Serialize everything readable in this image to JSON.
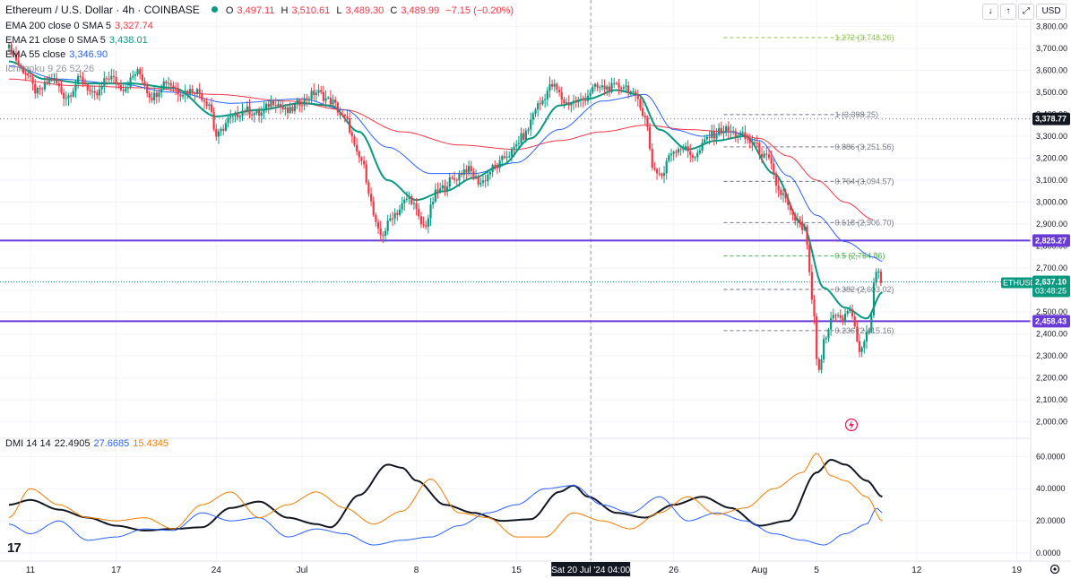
{
  "header": {
    "symbol": "Ethereum / U.S. Dollar · 4h · COINBASE",
    "o_label": "O",
    "o": "3,497.11",
    "h_label": "H",
    "h": "3,510.61",
    "l_label": "L",
    "l": "3,489.30",
    "c_label": "C",
    "c": "3,489.99",
    "change": "−7.15 (−0.20%)",
    "currency": "USD"
  },
  "indicators": {
    "ema200": {
      "label": "EMA 200 close 0 SMA 5",
      "value": "3,327.74",
      "color": "#f23645"
    },
    "ema21": {
      "label": "EMA 21 close 0 SMA 5",
      "value": "3,438.01",
      "color": "#089981"
    },
    "ema55": {
      "label": "EMA 55 close",
      "value": "3,346.90",
      "color": "#2962ff"
    },
    "ichimoku": {
      "label": "Ichimoku 9 26 52 26"
    }
  },
  "dmi": {
    "label": "DMI 14 14",
    "adx": "22.4905",
    "plus_di": "27.6685",
    "minus_di": "15.4345",
    "adx_color": "#131722",
    "plus_color": "#2962ff",
    "minus_color": "#f57c00"
  },
  "colors": {
    "up": "#089981",
    "down": "#f23645",
    "level_line": "#6a3bd6",
    "fib": "#787b86",
    "fib_top": "#8bc34a"
  },
  "chart_data": [
    {
      "type": "candlestick",
      "title": "Ethereum / U.S. Dollar · 4h · COINBASE",
      "yaxis": {
        "ticks": [
          2000,
          2100,
          2200,
          2300,
          2400,
          2500,
          2600,
          2700,
          2800,
          2900,
          3000,
          3100,
          3200,
          3300,
          3400,
          3500,
          3600,
          3700,
          3800
        ],
        "tick_labels": [
          "2,000.00",
          "2,100.00",
          "2,200.00",
          "2,300.00",
          "2,400.00",
          "2,500.00",
          "2,600.00",
          "2,700.00",
          "2,800.00",
          "2,900.00",
          "3,000.00",
          "3,100.00",
          "3,200.00",
          "3,300.00",
          "3,400.00",
          "3,500.00",
          "3,600.00",
          "3,700.00",
          "3,800.00"
        ],
        "range": [
          1950,
          3830
        ]
      },
      "xaxis": {
        "labels": [
          {
            "day": 11,
            "text": "11"
          },
          {
            "day": 17,
            "text": "17"
          },
          {
            "day": 24,
            "text": "24"
          },
          {
            "day": 30,
            "text": "Jul"
          },
          {
            "day": 38,
            "text": "8"
          },
          {
            "day": 45,
            "text": "15"
          },
          {
            "day": 56,
            "text": "26"
          },
          {
            "day": 62,
            "text": "Aug"
          },
          {
            "day": 66,
            "text": "5"
          },
          {
            "day": 73,
            "text": "12"
          },
          {
            "day": 80,
            "text": "19"
          }
        ],
        "crosshair_label": "Sat 20 Jul '24  04:00",
        "crosshair_day": 50.2
      },
      "levels": [
        {
          "value": 3378.77,
          "label": "3,378.77",
          "style": "dotted-gray"
        },
        {
          "value": 2825.27,
          "label": "2,825.27",
          "style": "solid-purple"
        },
        {
          "value": 2458.43,
          "label": "2,458.43",
          "style": "solid-purple"
        }
      ],
      "current_price": {
        "symbol": "ETHUSD",
        "value": 2637.1,
        "label": "2,637.10",
        "countdown": "03:48:25"
      },
      "fibonacci": [
        {
          "ratio": "1.272",
          "value": 3748.26,
          "label": "1.272 (3,748.26)"
        },
        {
          "ratio": "1",
          "value": 3398.25,
          "label": "1 (3,398.25)"
        },
        {
          "ratio": "0.886",
          "value": 3251.56,
          "label": "0.886 (3,251.56)"
        },
        {
          "ratio": "0.764",
          "value": 3094.57,
          "label": "0.764 (3,094.57)"
        },
        {
          "ratio": "0.618",
          "value": 2906.7,
          "label": "0.618 (2,906.70)"
        },
        {
          "ratio": "0.5",
          "value": 2754.86,
          "label": "0.5 (2,754.86)"
        },
        {
          "ratio": "0.382",
          "value": 2603.02,
          "label": "0.382 (2,603.02)"
        },
        {
          "ratio": "0.236",
          "value": 2415.16,
          "label": "0.236 (2,415.16)"
        }
      ],
      "fib_range_days": [
        59.5,
        69.5
      ],
      "price_anchors": [
        [
          9.5,
          3700
        ],
        [
          10.5,
          3600
        ],
        [
          11.5,
          3500
        ],
        [
          12.5,
          3560
        ],
        [
          13.5,
          3480
        ],
        [
          14.5,
          3560
        ],
        [
          15.5,
          3480
        ],
        [
          16.5,
          3570
        ],
        [
          17.5,
          3520
        ],
        [
          18.5,
          3590
        ],
        [
          19.5,
          3480
        ],
        [
          20.5,
          3550
        ],
        [
          21.5,
          3500
        ],
        [
          22.5,
          3510
        ],
        [
          23.5,
          3450
        ],
        [
          24,
          3300
        ],
        [
          25,
          3380
        ],
        [
          26,
          3420
        ],
        [
          27,
          3400
        ],
        [
          28,
          3460
        ],
        [
          29,
          3410
        ],
        [
          30,
          3460
        ],
        [
          31,
          3500
        ],
        [
          32,
          3460
        ],
        [
          33,
          3380
        ],
        [
          34,
          3200
        ],
        [
          35.5,
          2850
        ],
        [
          36.5,
          2950
        ],
        [
          37.5,
          3020
        ],
        [
          38.5,
          2890
        ],
        [
          39.5,
          3050
        ],
        [
          40.5,
          3100
        ],
        [
          41.5,
          3150
        ],
        [
          42.5,
          3090
        ],
        [
          43.5,
          3160
        ],
        [
          44.5,
          3220
        ],
        [
          45.5,
          3300
        ],
        [
          46.5,
          3440
        ],
        [
          47.5,
          3530
        ],
        [
          48.5,
          3450
        ],
        [
          49.5,
          3460
        ],
        [
          50.5,
          3520
        ],
        [
          51.5,
          3520
        ],
        [
          52.5,
          3530
        ],
        [
          53.5,
          3470
        ],
        [
          54,
          3380
        ],
        [
          54.6,
          3150
        ],
        [
          55.2,
          3120
        ],
        [
          55.8,
          3230
        ],
        [
          56.5,
          3250
        ],
        [
          57.5,
          3210
        ],
        [
          58.5,
          3300
        ],
        [
          59.5,
          3330
        ],
        [
          60.5,
          3310
        ],
        [
          61.5,
          3270
        ],
        [
          62.5,
          3200
        ],
        [
          63.5,
          3040
        ],
        [
          64.5,
          2920
        ],
        [
          65.2,
          2870
        ],
        [
          65.7,
          2550
        ],
        [
          66.1,
          2220
        ],
        [
          66.6,
          2380
        ],
        [
          67.2,
          2500
        ],
        [
          67.8,
          2460
        ],
        [
          68.3,
          2520
        ],
        [
          69,
          2330
        ],
        [
          69.6,
          2400
        ],
        [
          70.2,
          2700
        ],
        [
          70.6,
          2637
        ]
      ],
      "ema21_anchors": [
        [
          9.5,
          3640
        ],
        [
          12,
          3560
        ],
        [
          15,
          3540
        ],
        [
          18,
          3540
        ],
        [
          21,
          3520
        ],
        [
          24,
          3390
        ],
        [
          27,
          3420
        ],
        [
          30,
          3450
        ],
        [
          32,
          3440
        ],
        [
          34,
          3320
        ],
        [
          36,
          3100
        ],
        [
          38,
          3010
        ],
        [
          40,
          3050
        ],
        [
          42,
          3110
        ],
        [
          44,
          3170
        ],
        [
          46,
          3290
        ],
        [
          48,
          3440
        ],
        [
          50,
          3470
        ],
        [
          52,
          3510
        ],
        [
          53.5,
          3490
        ],
        [
          55,
          3330
        ],
        [
          57,
          3240
        ],
        [
          59,
          3280
        ],
        [
          61,
          3300
        ],
        [
          63,
          3130
        ],
        [
          65,
          2900
        ],
        [
          66.5,
          2610
        ],
        [
          68,
          2520
        ],
        [
          69.5,
          2470
        ],
        [
          70.6,
          2590
        ]
      ],
      "ema55_anchors": [
        [
          9.5,
          3620
        ],
        [
          13,
          3560
        ],
        [
          17,
          3540
        ],
        [
          21,
          3500
        ],
        [
          25,
          3450
        ],
        [
          30,
          3470
        ],
        [
          33,
          3420
        ],
        [
          36,
          3250
        ],
        [
          39,
          3130
        ],
        [
          42,
          3130
        ],
        [
          45,
          3180
        ],
        [
          48,
          3330
        ],
        [
          51,
          3460
        ],
        [
          54,
          3490
        ],
        [
          56,
          3330
        ],
        [
          58,
          3300
        ],
        [
          60,
          3320
        ],
        [
          62,
          3280
        ],
        [
          64,
          3120
        ],
        [
          66,
          2940
        ],
        [
          68,
          2820
        ],
        [
          70,
          2750
        ],
        [
          70.6,
          2730
        ]
      ],
      "ema200_anchors": [
        [
          9.5,
          3560
        ],
        [
          14,
          3530
        ],
        [
          19,
          3520
        ],
        [
          24,
          3490
        ],
        [
          29,
          3460
        ],
        [
          33,
          3420
        ],
        [
          37,
          3320
        ],
        [
          41,
          3260
        ],
        [
          45,
          3240
        ],
        [
          48,
          3280
        ],
        [
          51,
          3320
        ],
        [
          54,
          3350
        ],
        [
          57,
          3330
        ],
        [
          60,
          3320
        ],
        [
          62,
          3290
        ],
        [
          64,
          3210
        ],
        [
          66,
          3100
        ],
        [
          68,
          3000
        ],
        [
          70,
          2920
        ]
      ]
    },
    {
      "type": "line",
      "title": "DMI 14 14",
      "yaxis": {
        "ticks": [
          0,
          20,
          40,
          60
        ],
        "tick_labels": [
          "0.0000",
          "20.0000",
          "40.0000",
          "60.0000"
        ],
        "range": [
          -5,
          68
        ]
      },
      "series": [
        {
          "name": "ADX",
          "color": "#131722",
          "anchors": [
            [
              9.5,
              30
            ],
            [
              11,
              33
            ],
            [
              13,
              27
            ],
            [
              15,
              22
            ],
            [
              17,
              17
            ],
            [
              19,
              14
            ],
            [
              21,
              15
            ],
            [
              23,
              16
            ],
            [
              25,
              28
            ],
            [
              27,
              32
            ],
            [
              29,
              22
            ],
            [
              31,
              18
            ],
            [
              32,
              16
            ],
            [
              34,
              36
            ],
            [
              36,
              55
            ],
            [
              37,
              53
            ],
            [
              38,
              45
            ],
            [
              40,
              30
            ],
            [
              42,
              25
            ],
            [
              44,
              20
            ],
            [
              46,
              21
            ],
            [
              48,
              38
            ],
            [
              49,
              42
            ],
            [
              50,
              35
            ],
            [
              52,
              25
            ],
            [
              54,
              22
            ],
            [
              56,
              30
            ],
            [
              58,
              35
            ],
            [
              60,
              28
            ],
            [
              62,
              17
            ],
            [
              64,
              20
            ],
            [
              66,
              50
            ],
            [
              67,
              58
            ],
            [
              68,
              55
            ],
            [
              69.5,
              45
            ],
            [
              70.6,
              35
            ]
          ]
        },
        {
          "name": "+DI",
          "color": "#2962ff",
          "anchors": [
            [
              9.5,
              18
            ],
            [
              11,
              12
            ],
            [
              13,
              20
            ],
            [
              15,
              8
            ],
            [
              17,
              10
            ],
            [
              19,
              15
            ],
            [
              21,
              14
            ],
            [
              23,
              25
            ],
            [
              25,
              20
            ],
            [
              27,
              22
            ],
            [
              29,
              10
            ],
            [
              31,
              15
            ],
            [
              33,
              12
            ],
            [
              35,
              5
            ],
            [
              37,
              8
            ],
            [
              39,
              10
            ],
            [
              41,
              17
            ],
            [
              43,
              25
            ],
            [
              45,
              30
            ],
            [
              47,
              40
            ],
            [
              49,
              42
            ],
            [
              51,
              30
            ],
            [
              53,
              25
            ],
            [
              55,
              35
            ],
            [
              57,
              20
            ],
            [
              59,
              25
            ],
            [
              61,
              20
            ],
            [
              63,
              12
            ],
            [
              65,
              8
            ],
            [
              66.5,
              5
            ],
            [
              68,
              12
            ],
            [
              69.5,
              18
            ],
            [
              70.2,
              28
            ],
            [
              70.6,
              25
            ]
          ]
        },
        {
          "name": "−DI",
          "color": "#f57c00",
          "anchors": [
            [
              9.5,
              22
            ],
            [
              11,
              40
            ],
            [
              13,
              30
            ],
            [
              15,
              22
            ],
            [
              17,
              20
            ],
            [
              19,
              22
            ],
            [
              21,
              15
            ],
            [
              23,
              30
            ],
            [
              25,
              38
            ],
            [
              27,
              22
            ],
            [
              29,
              30
            ],
            [
              31,
              38
            ],
            [
              33,
              28
            ],
            [
              35,
              18
            ],
            [
              37,
              26
            ],
            [
              39,
              46
            ],
            [
              41,
              25
            ],
            [
              43,
              22
            ],
            [
              45,
              10
            ],
            [
              47,
              10
            ],
            [
              49,
              25
            ],
            [
              51,
              20
            ],
            [
              53,
              15
            ],
            [
              55,
              25
            ],
            [
              57,
              35
            ],
            [
              59,
              24
            ],
            [
              61,
              28
            ],
            [
              63,
              40
            ],
            [
              65,
              50
            ],
            [
              66,
              62
            ],
            [
              67,
              48
            ],
            [
              68,
              45
            ],
            [
              69.5,
              35
            ],
            [
              70.6,
              20
            ]
          ]
        }
      ]
    }
  ]
}
